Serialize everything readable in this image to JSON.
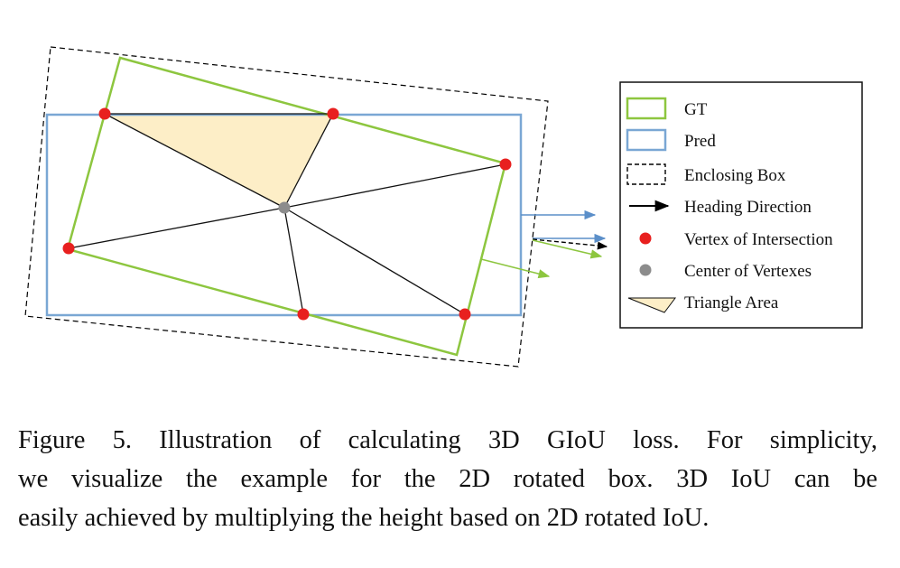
{
  "colors": {
    "gt": "#8dc63f",
    "pred": "#7aa7d4",
    "enclosing": "#000000",
    "heading": "#000000",
    "vertex": "#e8201f",
    "center": "#8c8c8c",
    "triangle_fill": "#fdeec7",
    "pred_arrow": "#5b8fc9",
    "gt_arrow": "#8dc63f"
  },
  "legend": {
    "items": [
      {
        "label": "GT",
        "symbol": "gt-box"
      },
      {
        "label": "Pred",
        "symbol": "pred-box"
      },
      {
        "label": "Enclosing Box",
        "symbol": "dashed-box"
      },
      {
        "label": "Heading Direction",
        "symbol": "arrow"
      },
      {
        "label": "Vertex of Intersection",
        "symbol": "red-dot"
      },
      {
        "label": "Center of Vertexes",
        "symbol": "gray-dot"
      },
      {
        "label": "Triangle Area",
        "symbol": "triangle"
      }
    ]
  },
  "caption": {
    "line1": "Figure 5. Illustration of calculating 3D GIoU loss. For simplicity,",
    "line2": "we visualize the example for the 2D rotated box.  3D IoU can be",
    "line3": "easily achieved by multiplying the height based on 2D rotated IoU."
  }
}
